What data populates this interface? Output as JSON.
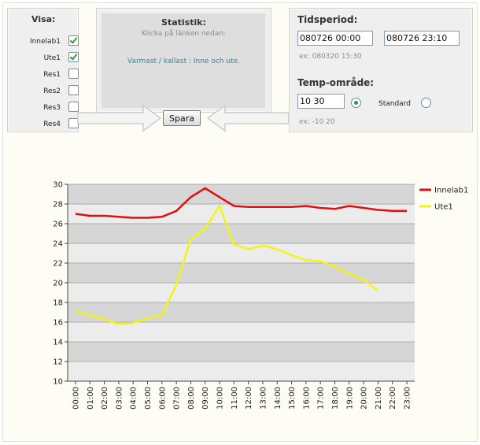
{
  "visa": {
    "title": "Visa:",
    "items": [
      {
        "label": "Innelab1",
        "checked": true
      },
      {
        "label": "Ute1",
        "checked": true
      },
      {
        "label": "Res1",
        "checked": false
      },
      {
        "label": "Res2",
        "checked": false
      },
      {
        "label": "Res3",
        "checked": false
      },
      {
        "label": "Res4",
        "checked": false
      }
    ]
  },
  "statistik": {
    "title": "Statistik:",
    "subtitle": "Klicka på länken nedan:",
    "link": "Varmast / kallast : Inne och ute."
  },
  "spara_label": "Spara",
  "tidsperiod": {
    "title": "Tidsperiod:",
    "from": "080726 00:00",
    "to": "080726 23:10",
    "hint": "ex: 080320 15:30"
  },
  "temp": {
    "title": "Temp-område:",
    "value": "10 30",
    "option_custom_selected": true,
    "standard_label": "Standard",
    "hint": "ex: -10 20"
  },
  "colors": {
    "innelab1": "#e01010",
    "ute1": "#f4f414",
    "link": "#2a8a9a",
    "band_dark": "#d6d6d6",
    "band_light": "#ececec"
  },
  "chart_data": {
    "type": "line",
    "x": [
      "00:00",
      "01:00",
      "02:00",
      "03:00",
      "04:00",
      "05:00",
      "06:00",
      "07:00",
      "08:00",
      "09:00",
      "10:00",
      "11:00",
      "12:00",
      "13:00",
      "14:00",
      "15:00",
      "16:00",
      "17:00",
      "18:00",
      "19:00",
      "20:00",
      "21:00",
      "22:00",
      "23:00"
    ],
    "series": [
      {
        "name": "Innelab1",
        "color": "#e01010",
        "values": [
          27.0,
          26.8,
          26.8,
          26.7,
          26.6,
          26.6,
          26.7,
          27.3,
          28.7,
          29.6,
          28.7,
          27.8,
          27.7,
          27.7,
          27.7,
          27.7,
          27.8,
          27.6,
          27.5,
          27.8,
          27.6,
          27.4,
          27.3,
          27.3
        ]
      },
      {
        "name": "Ute1",
        "color": "#f4f414",
        "values": [
          17.1,
          16.7,
          16.3,
          15.8,
          15.9,
          16.4,
          16.7,
          19.8,
          24.4,
          25.5,
          27.8,
          23.9,
          23.4,
          23.8,
          23.4,
          22.8,
          22.3,
          22.2,
          21.6,
          20.9,
          20.3,
          19.2,
          null,
          null
        ]
      }
    ],
    "ylim": [
      10,
      30
    ],
    "yticks": [
      "10",
      "12",
      "14",
      "16",
      "18",
      "20",
      "22",
      "24",
      "26",
      "28",
      "30"
    ],
    "grid": true,
    "legend": "right"
  }
}
